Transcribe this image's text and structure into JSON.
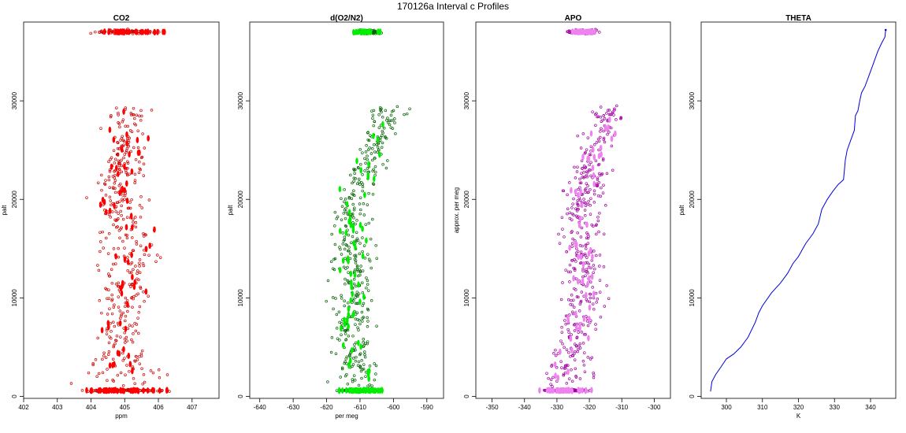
{
  "figure_title": "170126a   Interval c Profiles",
  "chart_data": [
    {
      "type": "scatter",
      "title": "CO2",
      "xlabel": "ppm",
      "ylabel": "palt",
      "xlim": [
        402,
        407.8
      ],
      "ylim": [
        -200,
        38000
      ],
      "xticks": [
        402,
        403,
        404,
        405,
        406,
        407
      ],
      "yticks": [
        0,
        10000,
        20000,
        30000
      ],
      "point_color": "#cc0000",
      "marker_color": "#ff0000",
      "grid": false,
      "x_range_by_altitude": [
        {
          "palt": 600,
          "center": 405.0,
          "spread": 2.5
        },
        {
          "palt": 5000,
          "center": 404.9,
          "spread": 0.9
        },
        {
          "palt": 10000,
          "center": 405.0,
          "spread": 1.1
        },
        {
          "palt": 15000,
          "center": 405.2,
          "spread": 1.3
        },
        {
          "palt": 20000,
          "center": 404.8,
          "spread": 1.1
        },
        {
          "palt": 25000,
          "center": 405.0,
          "spread": 0.9
        },
        {
          "palt": 29000,
          "center": 405.2,
          "spread": 0.9
        },
        {
          "palt": 37000,
          "center": 405.0,
          "spread": 2.0
        }
      ]
    },
    {
      "type": "scatter",
      "title": "d(O2/N2)",
      "xlabel": "per meg",
      "ylabel": "palt",
      "xlim": [
        -643,
        -585
      ],
      "ylim": [
        -200,
        38000
      ],
      "xticks": [
        -640,
        -630,
        -620,
        -610,
        -600,
        -590
      ],
      "yticks": [
        0,
        10000,
        20000,
        30000
      ],
      "point_color": "#006400",
      "marker_color": "#00ee00",
      "grid": false,
      "x_range_by_altitude": [
        {
          "palt": 600,
          "center": -610,
          "spread": 12
        },
        {
          "palt": 5000,
          "center": -613,
          "spread": 8
        },
        {
          "palt": 10000,
          "center": -612,
          "spread": 9
        },
        {
          "palt": 15000,
          "center": -612,
          "spread": 9
        },
        {
          "palt": 20000,
          "center": -612,
          "spread": 8
        },
        {
          "palt": 25000,
          "center": -606,
          "spread": 7
        },
        {
          "palt": 29000,
          "center": -602,
          "spread": 8
        },
        {
          "palt": 37000,
          "center": -608,
          "spread": 8
        }
      ]
    },
    {
      "type": "scatter",
      "title": "APO",
      "xlabel": "",
      "ylabel": "approx. per meg",
      "xlim": [
        -355,
        -295
      ],
      "ylim": [
        -200,
        38000
      ],
      "xticks": [
        -350,
        -340,
        -330,
        -320,
        -310,
        -300
      ],
      "yticks": [
        0,
        10000,
        20000,
        30000
      ],
      "point_color": "#a000a0",
      "marker_color": "#ee82ee",
      "grid": false,
      "x_range_by_altitude": [
        {
          "palt": 600,
          "center": -327,
          "spread": 14
        },
        {
          "palt": 5000,
          "center": -325,
          "spread": 9
        },
        {
          "palt": 10000,
          "center": -322,
          "spread": 10
        },
        {
          "palt": 15000,
          "center": -322,
          "spread": 10
        },
        {
          "palt": 20000,
          "center": -322,
          "spread": 9
        },
        {
          "palt": 25000,
          "center": -318,
          "spread": 8
        },
        {
          "palt": 29000,
          "center": -314,
          "spread": 8
        },
        {
          "palt": 37000,
          "center": -322,
          "spread": 9
        }
      ]
    },
    {
      "type": "line",
      "title": "THETA",
      "xlabel": "K",
      "ylabel": "palt",
      "xlim": [
        293,
        347
      ],
      "ylim": [
        -200,
        38000
      ],
      "xticks": [
        300,
        310,
        320,
        330,
        340
      ],
      "yticks": [
        0,
        10000,
        20000,
        30000
      ],
      "line_color": "#0000dd",
      "grid": false,
      "x": [
        295.6,
        296.0,
        297.0,
        298.5,
        300.0,
        302.0,
        304.0,
        306.0,
        308.0,
        309.0,
        310.0,
        312.5,
        315.0,
        317.0,
        318.5,
        320.0,
        322.0,
        324.0,
        325.5,
        326.5,
        328.0,
        329.5,
        331.0,
        332.5,
        333.0,
        333.5,
        334.5,
        335.5,
        335.8,
        336.5,
        337.0,
        337.5,
        338.5,
        339.5,
        340.5,
        341.5,
        342.0,
        343.0,
        344.0,
        344.2
      ],
      "y": [
        500,
        1500,
        2200,
        3000,
        3800,
        4300,
        5000,
        6000,
        7500,
        8500,
        9200,
        10500,
        11500,
        12500,
        13500,
        14200,
        15500,
        16500,
        17500,
        19000,
        20000,
        20800,
        21500,
        22000,
        24000,
        25000,
        26000,
        27000,
        28500,
        29000,
        30000,
        30800,
        31500,
        32500,
        33500,
        34500,
        35000,
        35800,
        36500,
        37200
      ]
    }
  ]
}
